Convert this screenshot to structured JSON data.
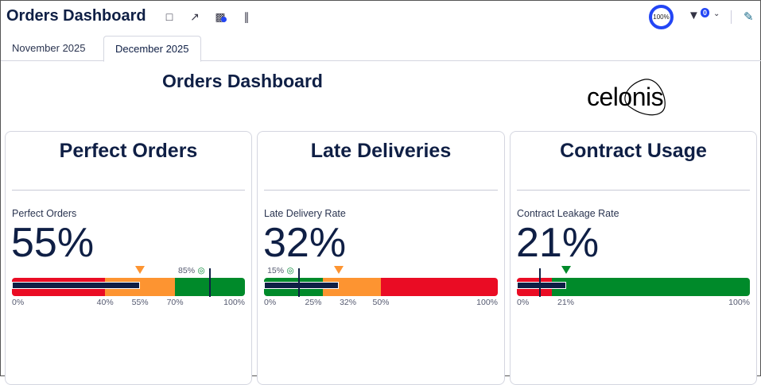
{
  "header": {
    "title": "Orders Dashboard",
    "zoom": "100%",
    "filter_count": "0"
  },
  "tabs": [
    {
      "label": "November 2025",
      "active": false
    },
    {
      "label": "December 2025",
      "active": true
    }
  ],
  "dashboard": {
    "title": "Orders Dashboard",
    "logo": "celonis"
  },
  "colors": {
    "red": "#ea0c24",
    "orange": "#fd9431",
    "green": "#008a2a",
    "navy": "#0f1f45",
    "accent": "#2346f5"
  },
  "cards": [
    {
      "title": "Perfect Orders",
      "kpi_label": "Perfect Orders",
      "kpi_value": "55%",
      "bullet": {
        "value": 55,
        "target": 85,
        "target_label": "85%",
        "marker": 55,
        "marker_color": "orange",
        "bands": [
          {
            "from": 0,
            "to": 40,
            "color": "red"
          },
          {
            "from": 40,
            "to": 70,
            "color": "orange"
          },
          {
            "from": 70,
            "to": 100,
            "color": "green"
          }
        ],
        "ticks": [
          "0%",
          "40%",
          "55%",
          "70%",
          "100%"
        ],
        "tick_values": [
          0,
          40,
          55,
          70,
          100
        ]
      }
    },
    {
      "title": "Late Deliveries",
      "kpi_label": "Late Delivery Rate",
      "kpi_value": "32%",
      "bullet": {
        "value": 32,
        "target": 15,
        "target_label": "15%",
        "marker": 32,
        "marker_color": "orange",
        "bands": [
          {
            "from": 0,
            "to": 25,
            "color": "green"
          },
          {
            "from": 25,
            "to": 50,
            "color": "orange"
          },
          {
            "from": 50,
            "to": 100,
            "color": "red"
          }
        ],
        "ticks": [
          "0%",
          "25%",
          "32%",
          "50%",
          "100%"
        ],
        "tick_values": [
          0,
          25,
          32,
          50,
          100
        ]
      }
    },
    {
      "title": "Contract Usage",
      "kpi_label": "Contract Leakage Rate",
      "kpi_value": "21%",
      "bullet": {
        "value": 21,
        "target": 10,
        "target_label": "",
        "marker": 21,
        "marker_color": "green",
        "bands": [
          {
            "from": 0,
            "to": 15,
            "color": "red"
          },
          {
            "from": 15,
            "to": 100,
            "color": "green"
          }
        ],
        "ticks": [
          "0%",
          "21%",
          "100%"
        ],
        "tick_values": [
          0,
          21,
          100
        ]
      }
    }
  ]
}
